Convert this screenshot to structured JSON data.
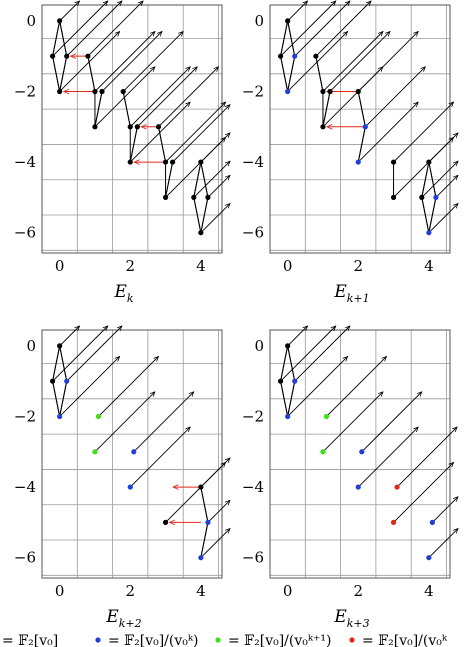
{
  "colors": {
    "black": "#000000",
    "blue": "#1f3fd6",
    "green": "#3ee01a",
    "red": "#e0281a",
    "grid": "#9a9a9a"
  },
  "panels": [
    {
      "title": "E",
      "subscript": "k",
      "xticks": [
        "0",
        "2",
        "4"
      ],
      "yticks": [
        "0",
        "−2",
        "−4",
        "−6"
      ],
      "dots": [
        [
          0,
          0,
          "black"
        ],
        [
          -0.2,
          -1,
          "black"
        ],
        [
          0,
          -2,
          "black"
        ],
        [
          0.2,
          -1,
          "black"
        ],
        [
          1,
          -2,
          "black"
        ],
        [
          0.8,
          -1,
          "black"
        ],
        [
          1.2,
          -2,
          "black"
        ],
        [
          1,
          -3,
          "black"
        ],
        [
          2,
          -3,
          "black"
        ],
        [
          1.8,
          -2,
          "black"
        ],
        [
          2.2,
          -3,
          "black"
        ],
        [
          2,
          -4,
          "black"
        ],
        [
          3,
          -4,
          "black"
        ],
        [
          2.8,
          -3,
          "black"
        ],
        [
          3.2,
          -4,
          "black"
        ],
        [
          3,
          -5,
          "black"
        ],
        [
          4,
          -4,
          "black"
        ],
        [
          3.8,
          -5,
          "black"
        ],
        [
          4.2,
          -5,
          "black"
        ],
        [
          4,
          -6,
          "black"
        ]
      ],
      "red_arrows": [
        [
          0.8,
          -1,
          0.2,
          -1
        ],
        [
          1,
          -2,
          0,
          -2
        ],
        [
          2.8,
          -3,
          2.2,
          -3
        ],
        [
          3,
          -4,
          2,
          -4
        ]
      ]
    },
    {
      "title": "E",
      "subscript": "k+1",
      "xticks": [
        "0",
        "2",
        "4"
      ],
      "yticks": [
        "0",
        "−2",
        "−4",
        "−6"
      ],
      "dots": [
        [
          0,
          0,
          "black"
        ],
        [
          -0.2,
          -1,
          "black"
        ],
        [
          0.2,
          -1,
          "blue"
        ],
        [
          0,
          -2,
          "blue"
        ],
        [
          1,
          -2,
          "black"
        ],
        [
          0.8,
          -1,
          "black"
        ],
        [
          1.2,
          -2,
          "black"
        ],
        [
          1,
          -3,
          "black"
        ],
        [
          2,
          -2,
          "black"
        ],
        [
          2.2,
          -3,
          "blue"
        ],
        [
          2,
          -4,
          "blue"
        ],
        [
          3,
          -4,
          "black"
        ],
        [
          3,
          -5,
          "black"
        ],
        [
          4,
          -4,
          "black"
        ],
        [
          3.8,
          -5,
          "black"
        ],
        [
          4.2,
          -5,
          "blue"
        ],
        [
          4,
          -6,
          "blue"
        ]
      ],
      "red_arrows": [
        [
          2,
          -2,
          1,
          -2
        ],
        [
          2.2,
          -3,
          1,
          -3
        ]
      ]
    },
    {
      "title": "E",
      "subscript": "k+2",
      "xticks": [
        "0",
        "2",
        "4"
      ],
      "yticks": [
        "0",
        "−2",
        "−4",
        "−6"
      ],
      "dots": [
        [
          0,
          0,
          "black"
        ],
        [
          -0.2,
          -1,
          "black"
        ],
        [
          0.2,
          -1,
          "blue"
        ],
        [
          0,
          -2,
          "blue"
        ],
        [
          1.1,
          -2,
          "green"
        ],
        [
          1,
          -3,
          "green"
        ],
        [
          2.1,
          -3,
          "blue"
        ],
        [
          2,
          -4,
          "blue"
        ],
        [
          4,
          -4,
          "black"
        ],
        [
          3,
          -5,
          "black"
        ],
        [
          4.2,
          -5,
          "blue"
        ],
        [
          4,
          -6,
          "blue"
        ]
      ],
      "red_arrows": [
        [
          4,
          -4,
          3.1,
          -4
        ],
        [
          4,
          -5,
          3,
          -5
        ]
      ]
    },
    {
      "title": "E",
      "subscript": "k+3",
      "xticks": [
        "0",
        "2",
        "4"
      ],
      "yticks": [
        "0",
        "−2",
        "−4",
        "−6"
      ],
      "dots": [
        [
          0,
          0,
          "black"
        ],
        [
          -0.2,
          -1,
          "black"
        ],
        [
          0.2,
          -1,
          "blue"
        ],
        [
          0,
          -2,
          "blue"
        ],
        [
          1.1,
          -2,
          "green"
        ],
        [
          1,
          -3,
          "green"
        ],
        [
          2.1,
          -3,
          "blue"
        ],
        [
          2,
          -4,
          "blue"
        ],
        [
          3.1,
          -4,
          "red"
        ],
        [
          3,
          -5,
          "red"
        ],
        [
          4.1,
          -5,
          "blue"
        ],
        [
          4,
          -6,
          "blue"
        ]
      ],
      "red_arrows": []
    }
  ],
  "legend": [
    {
      "color": "black",
      "label": "= 𝔽₂[v₀]"
    },
    {
      "color": "blue",
      "label": "= 𝔽₂[v₀]/(v₀ᵏ)"
    },
    {
      "color": "green",
      "label": "= 𝔽₂[v₀]/(v₀ᵏ⁺¹)"
    },
    {
      "color": "red",
      "label": "= 𝔽₂[v₀]/(v₀ᵏ"
    }
  ]
}
